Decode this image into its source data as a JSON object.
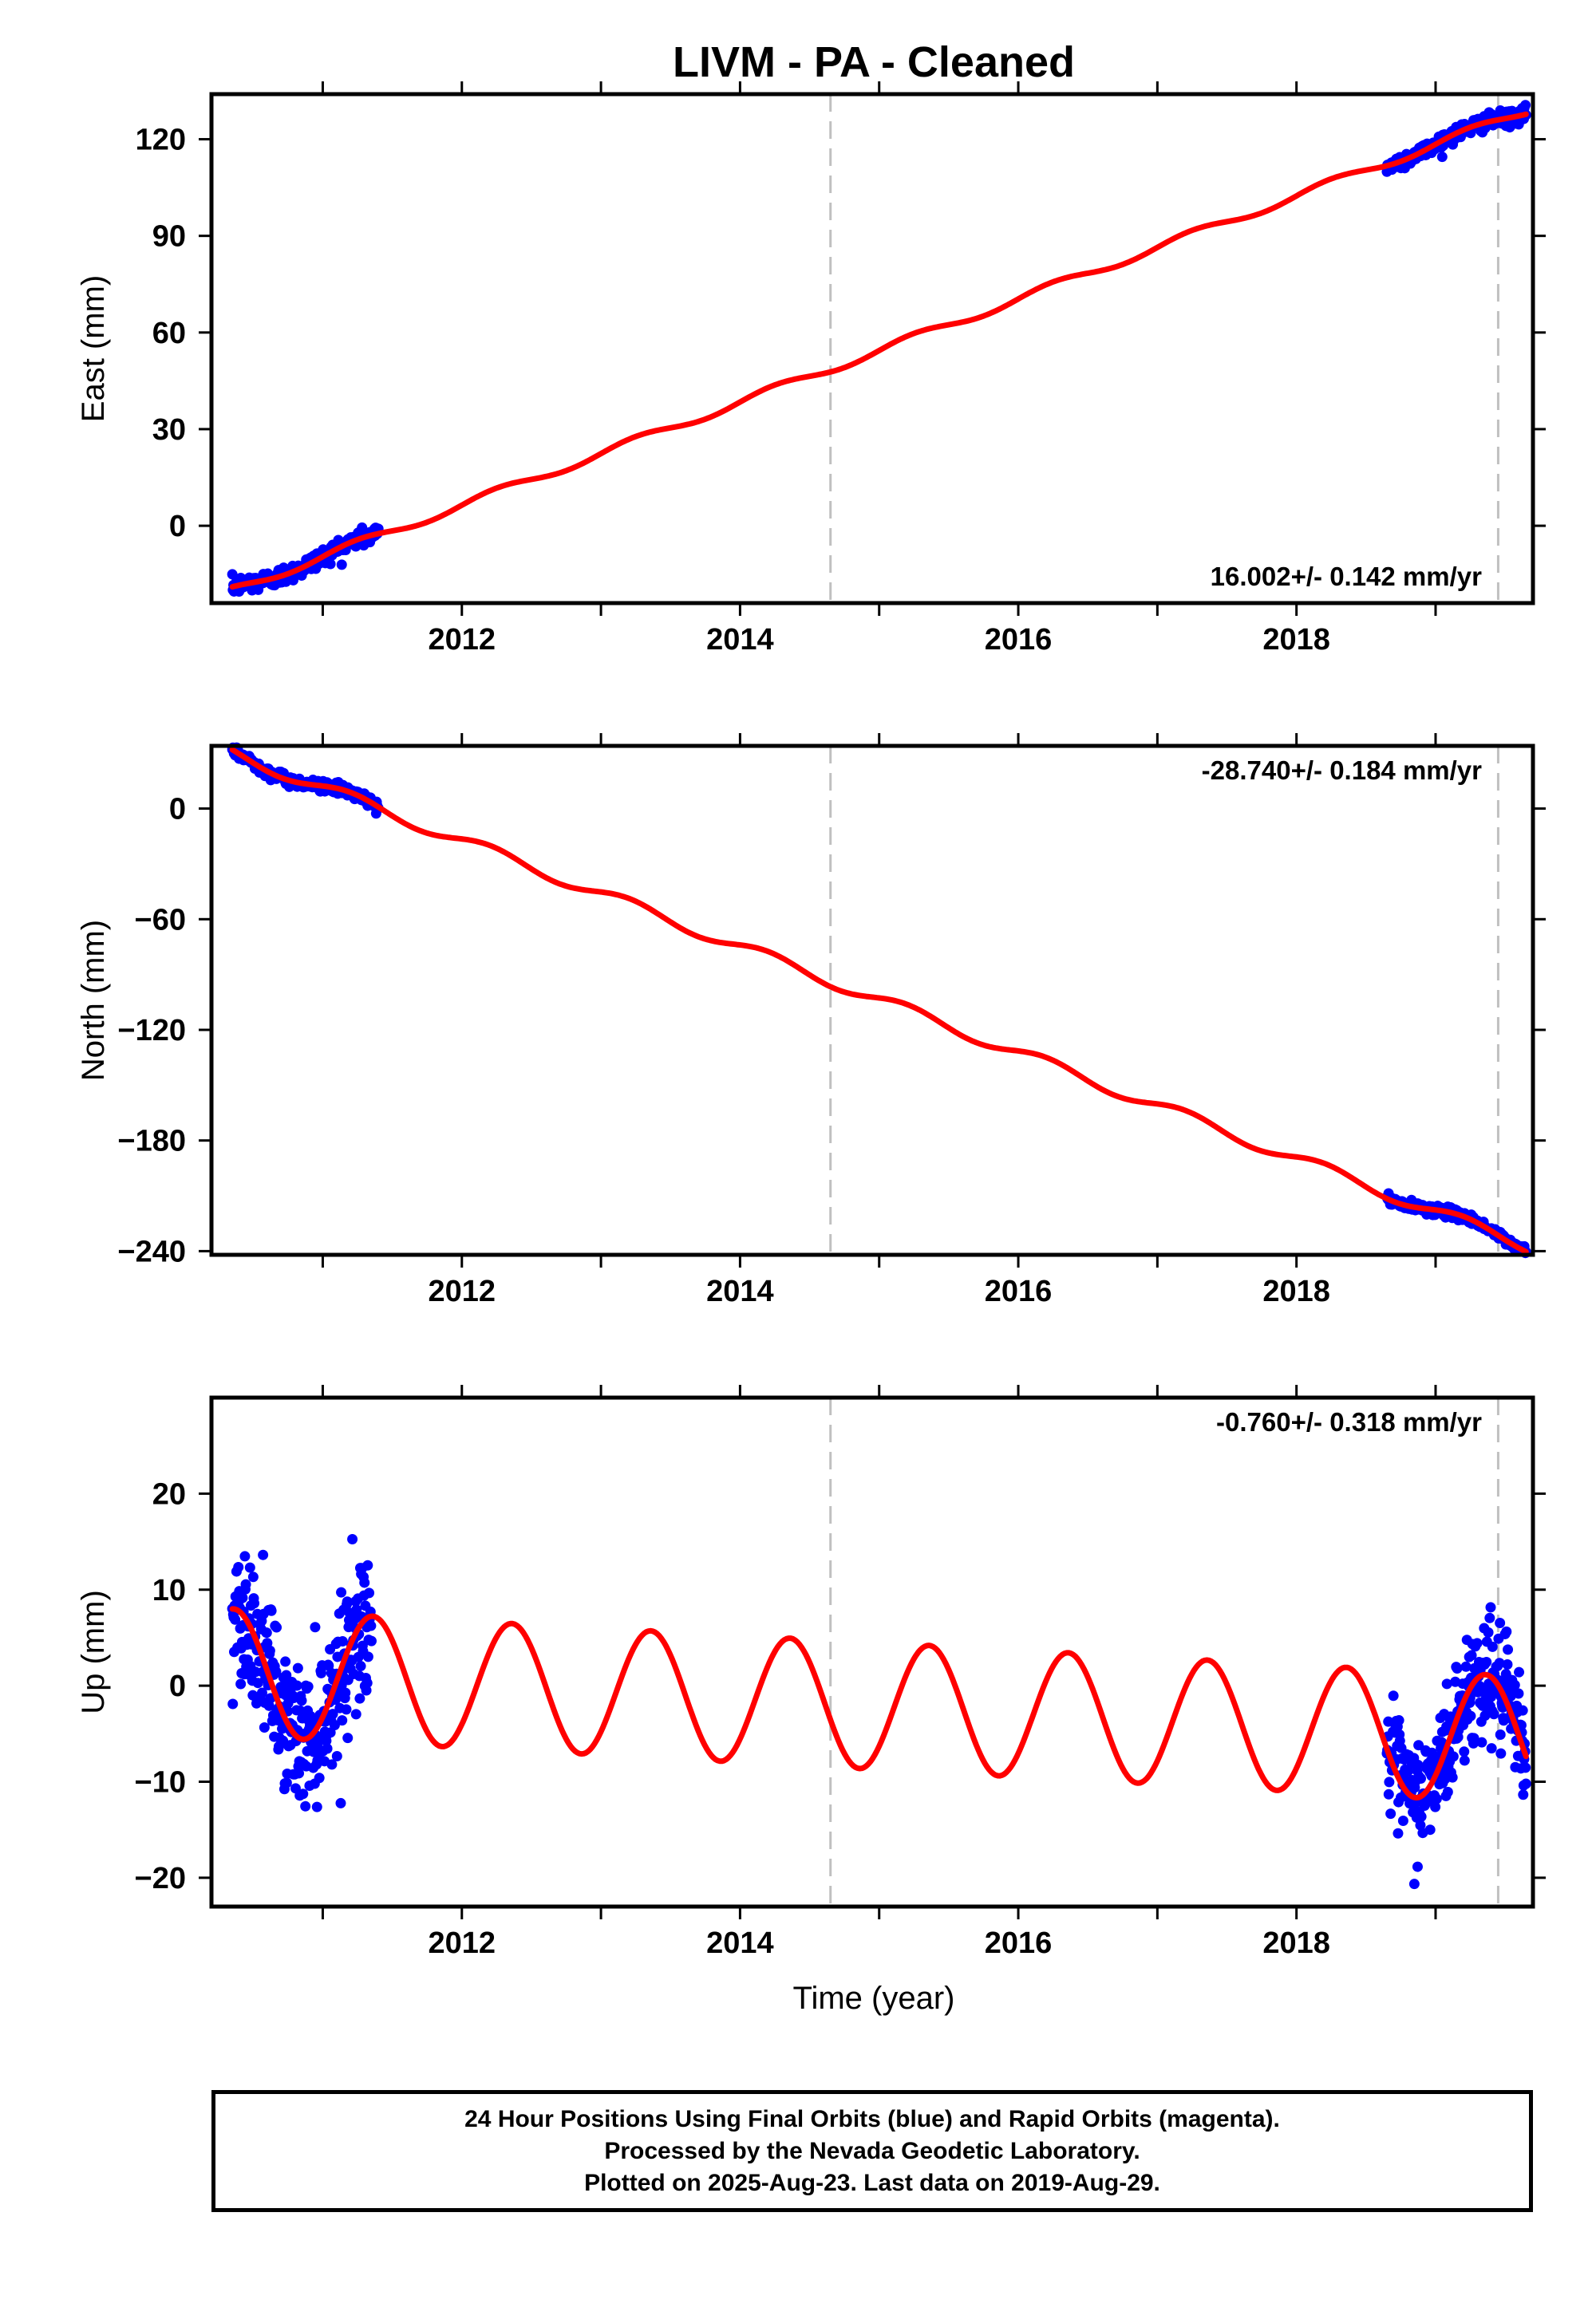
{
  "title": "LIVM  - PA - Cleaned",
  "xlabel": "Time (year)",
  "footer": {
    "line1": "24 Hour Positions Using Final Orbits (blue) and Rapid Orbits (magenta).",
    "line2": "Processed by the Nevada Geodetic Laboratory.",
    "line3": "Plotted on 2025-Aug-23. Last data on 2019-Aug-29."
  },
  "colors": {
    "data": "#0000ff",
    "model": "#ff0000",
    "event_line": "#c0c0c0",
    "axis": "#000000"
  },
  "chart_data": [
    {
      "type": "scatter",
      "component": "East",
      "ylabel": "East (mm)",
      "rate_label": "16.002+/- 0.142 mm/yr",
      "xlim": [
        2010.2,
        2019.7
      ],
      "ylim": [
        -24,
        134
      ],
      "xticks": [
        2012,
        2014,
        2016,
        2018
      ],
      "yticks": [
        0,
        30,
        60,
        90,
        120
      ],
      "event_lines": [
        2014.65,
        2019.45
      ],
      "rate_mm_per_yr": 16.002,
      "offset_mm": -20,
      "seasonal": {
        "amplitude_mm": 1.3,
        "phase_rad": 0
      },
      "data_segments": [
        {
          "start": 2010.35,
          "end": 2011.4,
          "points": 260,
          "scatter_mm": 1.4
        },
        {
          "start": 2018.65,
          "end": 2019.65,
          "points": 250,
          "scatter_mm": 1.2
        }
      ],
      "model_segments": [
        {
          "start": 2010.35,
          "end": 2019.65
        }
      ]
    },
    {
      "type": "scatter",
      "component": "North",
      "ylabel": "North (mm)",
      "rate_label": "-28.740+/- 0.184 mm/yr",
      "xlim": [
        2010.2,
        2019.7
      ],
      "ylim": [
        -242,
        34
      ],
      "xticks": [
        2012,
        2014,
        2016,
        2018
      ],
      "yticks": [
        -240,
        -180,
        -120,
        -60,
        0
      ],
      "event_lines": [
        2014.65,
        2019.45
      ],
      "rate_mm_per_yr": -28.74,
      "offset_mm": 30,
      "seasonal": {
        "amplitude_mm": 3.2,
        "phase_rad": 0.3
      },
      "data_segments": [
        {
          "start": 2010.35,
          "end": 2011.4,
          "points": 260,
          "scatter_mm": 1.5
        },
        {
          "start": 2018.65,
          "end": 2019.65,
          "points": 250,
          "scatter_mm": 1.3
        }
      ],
      "model_segments": [
        {
          "start": 2010.35,
          "end": 2019.65
        }
      ]
    },
    {
      "type": "scatter",
      "component": "Up",
      "ylabel": "Up (mm)",
      "rate_label": "-0.760+/- 0.318 mm/yr",
      "xlim": [
        2010.2,
        2019.7
      ],
      "ylim": [
        -23,
        30
      ],
      "xticks": [
        2012,
        2014,
        2016,
        2018
      ],
      "yticks": [
        -20,
        -10,
        0,
        10,
        20
      ],
      "event_lines": [
        2014.65,
        2019.45
      ],
      "rate_mm_per_yr": -0.76,
      "offset_mm": 1.4,
      "seasonal": {
        "amplitude_mm": 6.6,
        "phase_rad": 5.6
      },
      "data_segments": [
        {
          "start": 2010.35,
          "end": 2011.35,
          "points": 300,
          "scatter_mm": 3.6
        },
        {
          "start": 2018.65,
          "end": 2019.65,
          "points": 300,
          "scatter_mm": 3.0
        }
      ],
      "model_segments": [
        {
          "start": 2010.35,
          "end": 2019.65
        }
      ]
    }
  ]
}
